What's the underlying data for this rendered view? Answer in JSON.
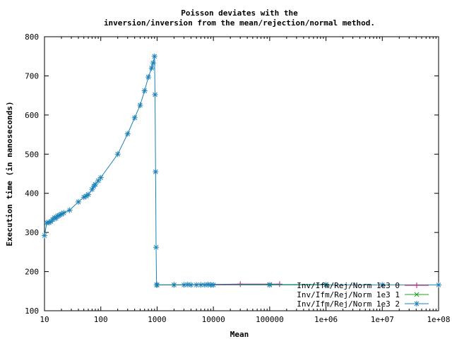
{
  "chart_data": {
    "type": "line",
    "title_lines": [
      "Poisson deviates with the",
      "inversion/inversion from the mean/rejection/normal method."
    ],
    "xlabel": "Mean",
    "ylabel": "Execution time (in nanoseconds)",
    "x_scale": "log",
    "xlim": [
      10,
      100000000
    ],
    "ylim": [
      100,
      800
    ],
    "x_ticks": [
      10,
      100,
      1000,
      10000,
      100000,
      1000000,
      10000000,
      100000000
    ],
    "x_tick_labels": [
      "10",
      "100",
      "1000",
      "10000",
      "100000",
      "1e+06",
      "1e+07",
      "1e+08"
    ],
    "y_ticks": [
      100,
      200,
      300,
      400,
      500,
      600,
      700,
      800
    ],
    "y_tick_labels": [
      "100",
      "200",
      "300",
      "400",
      "500",
      "600",
      "700",
      "800"
    ],
    "grid": false,
    "legend_position": "bottom-right",
    "series": [
      {
        "name": "Inv/Ifm/Rej/Norm 1e3 0",
        "color": "#c41a6b",
        "marker": "plus",
        "x": [
          1000,
          2000,
          30000,
          150000
        ],
        "y": [
          166,
          166,
          168,
          168
        ]
      },
      {
        "name": "Inv/Ifm/Rej/Norm 1e3 1",
        "color": "#1f9f1f",
        "marker": "cross",
        "x": [
          1000,
          2000,
          100000,
          1000000
        ],
        "y": [
          166,
          166,
          167,
          167
        ]
      },
      {
        "name": "Inv/Ifm/Rej/Norm 1e3 2",
        "color": "#1a80b8",
        "marker": "star",
        "x": [
          10,
          11,
          12,
          13,
          14,
          15,
          16,
          17,
          18,
          19,
          20,
          22,
          28,
          40,
          50,
          55,
          60,
          70,
          75,
          80,
          90,
          100,
          200,
          300,
          400,
          500,
          600,
          700,
          800,
          850,
          900,
          920,
          940,
          960,
          980,
          1000,
          2000,
          3000,
          3500,
          4000,
          5000,
          6000,
          7000,
          8000,
          9000,
          10000,
          100000,
          1000000,
          10000000,
          100000000
        ],
        "y": [
          292,
          325,
          325,
          328,
          333,
          338,
          336,
          342,
          343,
          345,
          347,
          350,
          357,
          378,
          390,
          393,
          397,
          410,
          418,
          423,
          432,
          440,
          500,
          552,
          593,
          625,
          662,
          697,
          720,
          733,
          750,
          652,
          455,
          262,
          166,
          166,
          166,
          166,
          167,
          166,
          166,
          166,
          166,
          167,
          166,
          166,
          166,
          166,
          166,
          166
        ]
      }
    ]
  }
}
